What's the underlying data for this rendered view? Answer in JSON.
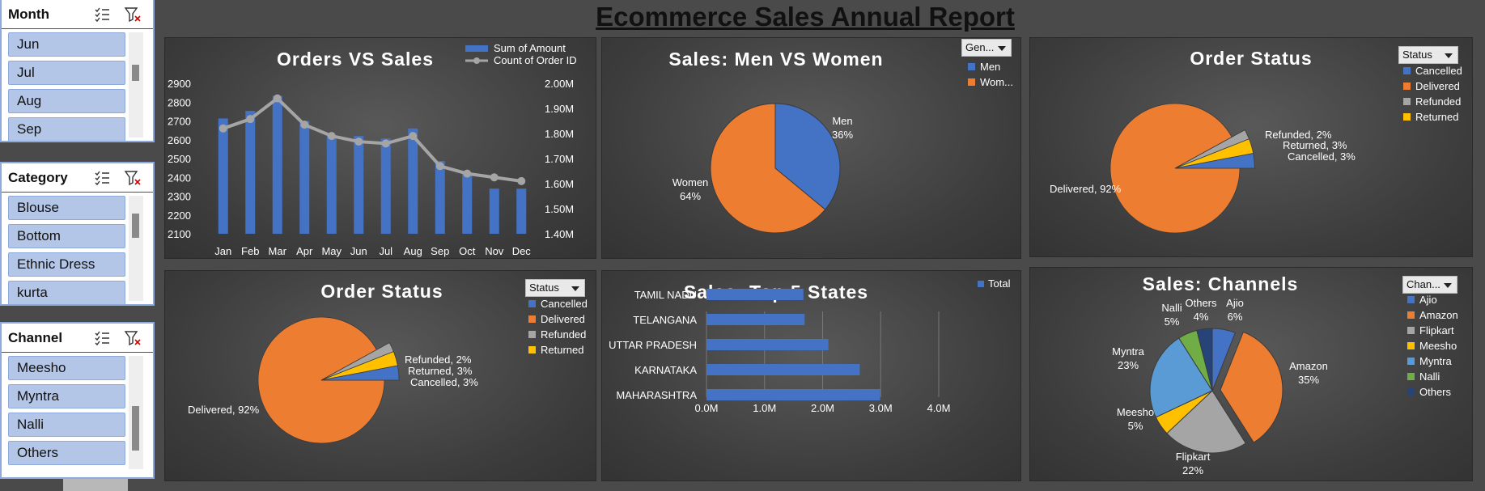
{
  "report_title": "Ecommerce Sales Annual Report",
  "slicers": [
    {
      "title": "Month",
      "items": [
        "Jun",
        "Jul",
        "Aug",
        "Sep"
      ]
    },
    {
      "title": "Category",
      "items": [
        "Blouse",
        "Bottom",
        "Ethnic Dress",
        "kurta"
      ]
    },
    {
      "title": "Channel",
      "items": [
        "Meesho",
        "Myntra",
        "Nalli",
        "Others"
      ]
    }
  ],
  "colors": {
    "blue": "#4472c4",
    "orange": "#ed7d31",
    "gray": "#a5a5a5",
    "yellow": "#ffc000",
    "lightblue": "#5b9bd5",
    "green": "#70ad47",
    "navy": "#264478",
    "line": "#a5a5a5"
  },
  "chart_data": [
    {
      "id": "orders-vs-sales",
      "type": "bar",
      "title": "Orders VS Sales",
      "categories": [
        "Jan",
        "Feb",
        "Mar",
        "Apr",
        "May",
        "Jun",
        "Jul",
        "Aug",
        "Sep",
        "Oct",
        "Nov",
        "Dec"
      ],
      "series": [
        {
          "name": "Sum of Amount",
          "type": "bar",
          "axis": "right",
          "values": [
            1.86,
            1.89,
            1.95,
            1.85,
            1.79,
            1.79,
            1.78,
            1.82,
            1.69,
            1.64,
            1.58,
            1.58
          ]
        },
        {
          "name": "Count of Order ID",
          "type": "line",
          "axis": "left",
          "values": [
            2660,
            2710,
            2820,
            2680,
            2620,
            2590,
            2580,
            2620,
            2460,
            2420,
            2400,
            2380
          ]
        }
      ],
      "y_left_ticks": [
        "2900",
        "2800",
        "2700",
        "2600",
        "2500",
        "2400",
        "2300",
        "2200",
        "2100"
      ],
      "y_left_range": [
        2100,
        2900
      ],
      "y_right_ticks": [
        "2.00M",
        "1.90M",
        "1.80M",
        "1.70M",
        "1.60M",
        "1.50M",
        "1.40M"
      ],
      "y_right_range": [
        1.4,
        2.0
      ],
      "legend": "top-right"
    },
    {
      "id": "sales-men-women",
      "type": "pie",
      "title": "Sales: Men VS Women",
      "filter_label": "Gen...",
      "legend_items": [
        "Men",
        "Wom..."
      ],
      "slices": [
        {
          "name": "Men",
          "value": 36,
          "label_name": "Men",
          "label_pct": "36%",
          "color": "#4472c4"
        },
        {
          "name": "Women",
          "value": 64,
          "label_name": "Women",
          "label_pct": "64%",
          "color": "#ed7d31"
        }
      ]
    },
    {
      "id": "order-status-1",
      "type": "pie",
      "title": "Order Status",
      "filter_label": "Status",
      "legend_items": [
        "Cancelled",
        "Delivered",
        "Refunded",
        "Returned"
      ],
      "slices": [
        {
          "name": "Cancelled",
          "value": 3,
          "label": "Cancelled, 3%",
          "color": "#4472c4"
        },
        {
          "name": "Delivered",
          "value": 92,
          "label": "Delivered, 92%",
          "color": "#ed7d31"
        },
        {
          "name": "Refunded",
          "value": 2,
          "label": "Refunded, 2%",
          "color": "#a5a5a5"
        },
        {
          "name": "Returned",
          "value": 3,
          "label": "Returned, 3%",
          "color": "#ffc000"
        }
      ]
    },
    {
      "id": "order-status-2",
      "type": "pie",
      "title": "Order Status",
      "filter_label": "Status",
      "legend_items": [
        "Cancelled",
        "Delivered",
        "Refunded",
        "Returned"
      ],
      "slices": [
        {
          "name": "Cancelled",
          "value": 3,
          "label": "Cancelled, 3%",
          "color": "#4472c4"
        },
        {
          "name": "Delivered",
          "value": 92,
          "label": "Delivered, 92%",
          "color": "#ed7d31"
        },
        {
          "name": "Refunded",
          "value": 2,
          "label": "Refunded, 2%",
          "color": "#a5a5a5"
        },
        {
          "name": "Returned",
          "value": 3,
          "label": "Returned, 3%",
          "color": "#ffc000"
        }
      ]
    },
    {
      "id": "top-5-states",
      "type": "bar",
      "orientation": "horizontal",
      "title": "Sales: Top 5 States",
      "legend_items": [
        "Total"
      ],
      "categories": [
        "TAMIL NADU",
        "TELANGANA",
        "UTTAR PRADESH",
        "KARNATAKA",
        "MAHARASHTRA"
      ],
      "values": [
        1.67,
        1.69,
        2.1,
        2.64,
        2.99
      ],
      "x_ticks": [
        "0.0M",
        "1.0M",
        "2.0M",
        "3.0M",
        "4.0M"
      ],
      "xlim": [
        0,
        4
      ]
    },
    {
      "id": "sales-channels",
      "type": "pie",
      "title": "Sales: Channels",
      "filter_label": "Chan...",
      "legend_items": [
        "Ajio",
        "Amazon",
        "Flipkart",
        "Meesho",
        "Myntra",
        "Nalli",
        "Others"
      ],
      "slices": [
        {
          "name": "Ajio",
          "value": 6,
          "label_name": "Ajio",
          "label_pct": "6%",
          "color": "#4472c4"
        },
        {
          "name": "Amazon",
          "value": 35,
          "label_name": "Amazon",
          "label_pct": "35%",
          "color": "#ed7d31"
        },
        {
          "name": "Flipkart",
          "value": 22,
          "label_name": "Flipkart",
          "label_pct": "22%",
          "color": "#a5a5a5"
        },
        {
          "name": "Meesho",
          "value": 5,
          "label_name": "Meesho",
          "label_pct": "5%",
          "color": "#ffc000"
        },
        {
          "name": "Myntra",
          "value": 23,
          "label_name": "Myntra",
          "label_pct": "23%",
          "color": "#5b9bd5"
        },
        {
          "name": "Nalli",
          "value": 5,
          "label_name": "Nalli",
          "label_pct": "5%",
          "color": "#70ad47"
        },
        {
          "name": "Others",
          "value": 4,
          "label_name": "Others",
          "label_pct": "4%",
          "color": "#264478"
        }
      ]
    }
  ]
}
